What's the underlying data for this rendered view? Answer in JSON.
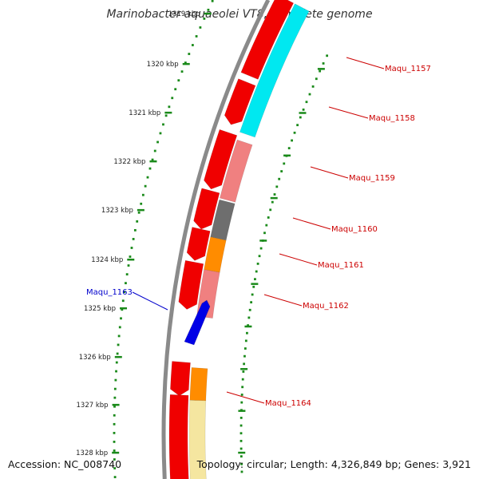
{
  "title": "Marinobacter aquaeolei VT8, complete genome",
  "footer": {
    "accession": "Accession: NC_008740",
    "topology": "Topology: circular; Length: 4,326,849 bp; Genes: 3,921"
  },
  "colors": {
    "cds_forward": "#f00000",
    "cds_reverse": "#0000e6",
    "rna_gene": "#f08080",
    "trna": "#ff8c00",
    "pseudo": "#6e6e6e",
    "highlight": "#00e8f0",
    "other": "#f5e6a0",
    "backbone": "#8a8a8a",
    "tick": "#1a8a1a",
    "label_forward": "#cc0000",
    "label_reverse": "#0000cc"
  },
  "ticks": [
    {
      "label": "1319 kbp"
    },
    {
      "label": "1320 kbp"
    },
    {
      "label": "1321 kbp"
    },
    {
      "label": "1322 kbp"
    },
    {
      "label": "1323 kbp"
    },
    {
      "label": "1324 kbp"
    },
    {
      "label": "1325 kbp"
    },
    {
      "label": "1326 kbp"
    },
    {
      "label": "1327 kbp"
    },
    {
      "label": "1328 kbp"
    }
  ],
  "genes": [
    {
      "name": "Maqu_1157",
      "strand": "forward"
    },
    {
      "name": "Maqu_1158",
      "strand": "forward"
    },
    {
      "name": "Maqu_1159",
      "strand": "forward"
    },
    {
      "name": "Maqu_1160",
      "strand": "forward"
    },
    {
      "name": "Maqu_1161",
      "strand": "forward"
    },
    {
      "name": "Maqu_1162",
      "strand": "forward"
    },
    {
      "name": "Maqu_1163",
      "strand": "reverse"
    },
    {
      "name": "Maqu_1164",
      "strand": "forward"
    }
  ]
}
